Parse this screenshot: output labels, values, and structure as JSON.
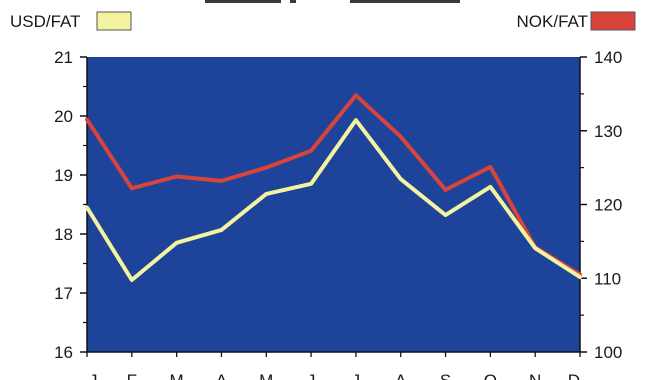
{
  "chart_data": {
    "type": "line",
    "categories": [
      "J",
      "F",
      "M",
      "A",
      "M",
      "J",
      "J",
      "A",
      "S",
      "O",
      "N",
      "D"
    ],
    "series": [
      {
        "name": "USD/FAT",
        "axis": "left",
        "color": "#f4f3a0",
        "values": [
          18.45,
          17.22,
          17.85,
          18.07,
          18.68,
          18.85,
          19.93,
          18.93,
          18.32,
          18.8,
          17.76,
          17.27
        ]
      },
      {
        "name": "NOK/FAT",
        "axis": "right",
        "color": "#d9443a",
        "values": [
          131.5,
          122.2,
          123.8,
          123.2,
          125.0,
          127.3,
          134.8,
          129.2,
          122.0,
          125.1,
          114.2,
          110.5
        ]
      }
    ],
    "ylim_left": [
      16,
      21
    ],
    "yticks_left": [
      "16",
      "17",
      "18",
      "19",
      "20",
      "21"
    ],
    "ylim_right": [
      100,
      140
    ],
    "yticks_right": [
      "100",
      "110",
      "120",
      "130",
      "140"
    ],
    "plot_background": "#1d449a",
    "grid": false,
    "legend_position": "top"
  }
}
